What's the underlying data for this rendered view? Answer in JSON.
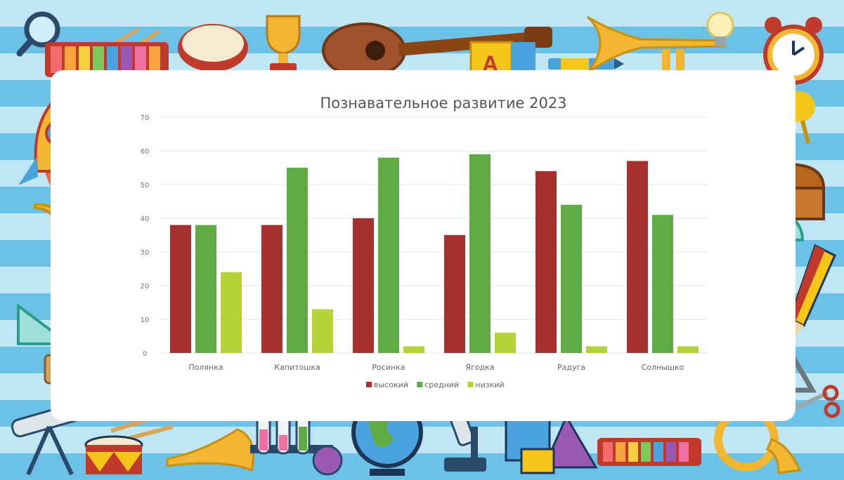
{
  "colors": {
    "frame_light": "#bfe6f4",
    "frame_dark": "#6cc2e6",
    "series": [
      "#a7322d",
      "#5fac45",
      "#b5d335"
    ]
  },
  "decorations": [
    "magnifier-icon",
    "xylophone-icon",
    "tambourine-icon",
    "trophy-icon",
    "guitar-icon",
    "abc-block-icon",
    "crayon-icon",
    "trumpet-icon",
    "lightbulb-icon",
    "alarm-clock-icon",
    "flask-icon",
    "rocket-icon",
    "maracas-icon",
    "chest-icon",
    "protractor-icon",
    "saxophone-icon",
    "compass-icon",
    "pencil-icon",
    "set-square-icon",
    "paint-palette-icon",
    "triangle-instrument-icon",
    "telescope-icon",
    "drum-icon",
    "test-tubes-icon",
    "globe-icon",
    "microscope-icon",
    "geometric-shapes-icon",
    "french-horn-icon",
    "scissors-icon"
  ],
  "chart_data": {
    "type": "bar",
    "title": "Познавательное развитие 2023",
    "xlabel": "",
    "ylabel": "",
    "categories": [
      "Полянка",
      "Капитошка",
      "Росинка",
      "Ягодка",
      "Радуга",
      "Солнышко"
    ],
    "series": [
      {
        "name": "высокий",
        "values": [
          38,
          38,
          40,
          35,
          54,
          57
        ]
      },
      {
        "name": "средний",
        "values": [
          38,
          55,
          58,
          59,
          44,
          41
        ]
      },
      {
        "name": "низкий",
        "values": [
          24,
          13,
          2,
          6,
          2,
          2
        ]
      }
    ],
    "ylim": [
      0,
      70
    ],
    "yticks": [
      0,
      10,
      20,
      30,
      40,
      50,
      60,
      70
    ],
    "grid": true,
    "legend": "bottom"
  }
}
